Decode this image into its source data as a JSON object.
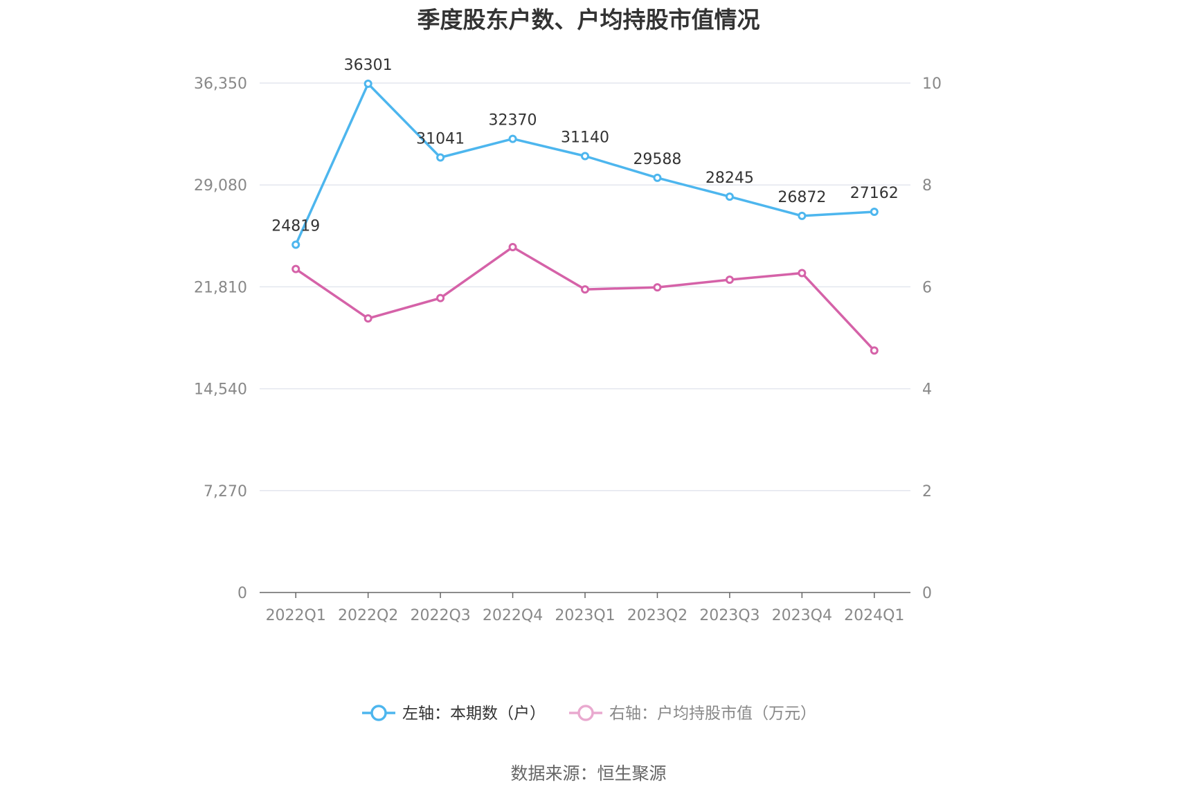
{
  "chart_data": {
    "type": "line",
    "title": "季度股东户数、户均持股市值情况",
    "categories": [
      "2022Q1",
      "2022Q2",
      "2022Q3",
      "2022Q4",
      "2023Q1",
      "2023Q2",
      "2023Q3",
      "2023Q4",
      "2024Q1"
    ],
    "left_axis": {
      "ticks": [
        "0",
        "7,270",
        "14,540",
        "21,810",
        "29,080",
        "36,350"
      ],
      "ylim": [
        0,
        36350
      ]
    },
    "right_axis": {
      "ticks": [
        "0",
        "2",
        "4",
        "6",
        "8",
        "10"
      ],
      "ylim": [
        0,
        10
      ]
    },
    "series": [
      {
        "name": "左轴：本期数（户）",
        "axis": "left",
        "color": "#4DB6EE",
        "values": [
          24819,
          36301,
          31041,
          32370,
          31140,
          29588,
          28245,
          26872,
          27162
        ],
        "labels": [
          "24819",
          "36301",
          "31041",
          "32370",
          "31140",
          "29588",
          "28245",
          "26872",
          "27162"
        ]
      },
      {
        "name": "右轴：户均持股市值（万元）",
        "axis": "right",
        "color": "#D562A8",
        "legend_color": "#E9A9CF",
        "values": [
          6.35,
          5.38,
          5.78,
          6.78,
          5.95,
          5.99,
          6.14,
          6.27,
          4.75
        ]
      }
    ],
    "grid": true,
    "legend_position": "bottom"
  },
  "source": "数据来源：恒生聚源"
}
